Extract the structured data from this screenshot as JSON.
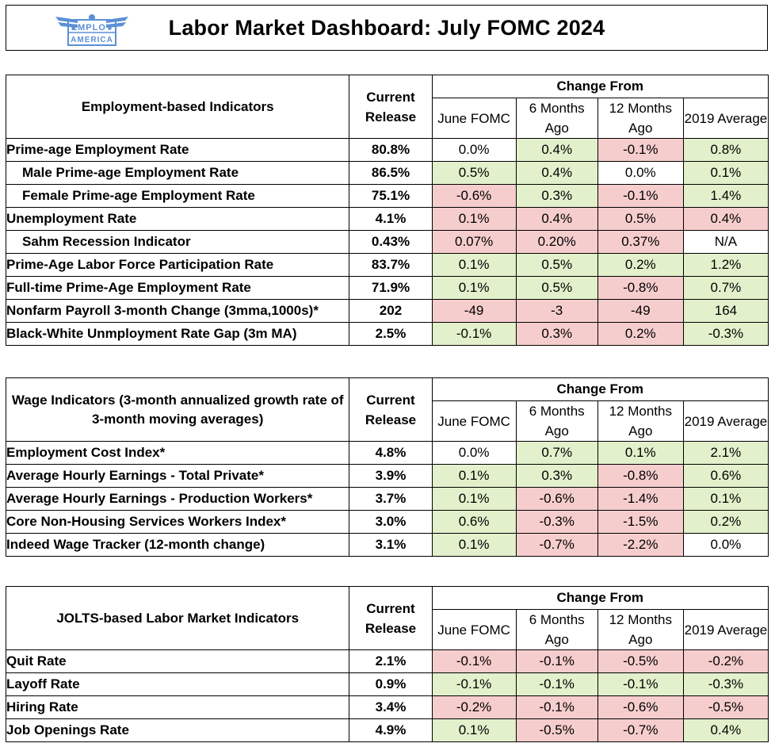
{
  "title": "Labor Market Dashboard: July FOMC 2024",
  "logo": {
    "line1": "EMPLOY",
    "line2": "AMERICA",
    "color": "#5b8fd6"
  },
  "colors": {
    "positive": "#e2f0cb",
    "negative": "#f6cdcd",
    "neutral": "#ffffff"
  },
  "columns": {
    "current": "Current Release",
    "change_from": "Change From",
    "june": "June FOMC",
    "six": "6 Months Ago",
    "twelve": "12 Months Ago",
    "avg2019": "2019 Average"
  },
  "sections": [
    {
      "label": "Employment-based Indicators",
      "rows": [
        {
          "label": "Prime-age Employment Rate",
          "indent": false,
          "current": "80.8%",
          "changes": [
            {
              "v": "0.0%",
              "c": "neu"
            },
            {
              "v": "0.4%",
              "c": "pos"
            },
            {
              "v": "-0.1%",
              "c": "neg"
            },
            {
              "v": "0.8%",
              "c": "pos"
            }
          ]
        },
        {
          "label": "Male Prime-age Employment Rate",
          "indent": true,
          "current": "86.5%",
          "changes": [
            {
              "v": "0.5%",
              "c": "pos"
            },
            {
              "v": "0.4%",
              "c": "pos"
            },
            {
              "v": "0.0%",
              "c": "neu"
            },
            {
              "v": "0.1%",
              "c": "pos"
            }
          ]
        },
        {
          "label": "Female Prime-age Employment Rate",
          "indent": true,
          "current": "75.1%",
          "changes": [
            {
              "v": "-0.6%",
              "c": "neg"
            },
            {
              "v": "0.3%",
              "c": "pos"
            },
            {
              "v": "-0.1%",
              "c": "neg"
            },
            {
              "v": "1.4%",
              "c": "pos"
            }
          ]
        },
        {
          "label": "Unemployment Rate",
          "indent": false,
          "current": "4.1%",
          "changes": [
            {
              "v": "0.1%",
              "c": "neg"
            },
            {
              "v": "0.4%",
              "c": "neg"
            },
            {
              "v": "0.5%",
              "c": "neg"
            },
            {
              "v": "0.4%",
              "c": "neg"
            }
          ]
        },
        {
          "label": "Sahm Recession Indicator",
          "indent": true,
          "current": "0.43%",
          "changes": [
            {
              "v": "0.07%",
              "c": "neg"
            },
            {
              "v": "0.20%",
              "c": "neg"
            },
            {
              "v": "0.37%",
              "c": "neg"
            },
            {
              "v": "N/A",
              "c": "neu"
            }
          ]
        },
        {
          "label": "Prime-Age Labor Force Participation Rate",
          "indent": false,
          "current": "83.7%",
          "changes": [
            {
              "v": "0.1%",
              "c": "pos"
            },
            {
              "v": "0.5%",
              "c": "pos"
            },
            {
              "v": "0.2%",
              "c": "pos"
            },
            {
              "v": "1.2%",
              "c": "pos"
            }
          ]
        },
        {
          "label": "Full-time Prime-Age Employment Rate",
          "indent": false,
          "current": "71.9%",
          "changes": [
            {
              "v": "0.1%",
              "c": "pos"
            },
            {
              "v": "0.5%",
              "c": "pos"
            },
            {
              "v": "-0.8%",
              "c": "neg"
            },
            {
              "v": "0.7%",
              "c": "pos"
            }
          ]
        },
        {
          "label": "Nonfarm Payroll 3-month Change (3mma,1000s)*",
          "indent": false,
          "current": "202",
          "changes": [
            {
              "v": "-49",
              "c": "neg"
            },
            {
              "v": "-3",
              "c": "neg"
            },
            {
              "v": "-49",
              "c": "neg"
            },
            {
              "v": "164",
              "c": "pos"
            }
          ]
        },
        {
          "label": "Black-White Unmployment Rate Gap (3m MA)",
          "indent": false,
          "current": "2.5%",
          "changes": [
            {
              "v": "-0.1%",
              "c": "pos"
            },
            {
              "v": "0.3%",
              "c": "neg"
            },
            {
              "v": "0.2%",
              "c": "neg"
            },
            {
              "v": "-0.3%",
              "c": "pos"
            }
          ]
        }
      ]
    },
    {
      "label": "Wage Indicators (3-month annualized growth rate of 3-month moving averages)",
      "rows": [
        {
          "label": "Employment Cost Index*",
          "indent": false,
          "current": "4.8%",
          "changes": [
            {
              "v": "0.0%",
              "c": "neu"
            },
            {
              "v": "0.7%",
              "c": "pos"
            },
            {
              "v": "0.1%",
              "c": "pos"
            },
            {
              "v": "2.1%",
              "c": "pos"
            }
          ]
        },
        {
          "label": "Average Hourly Earnings - Total Private*",
          "indent": false,
          "current": "3.9%",
          "changes": [
            {
              "v": "0.1%",
              "c": "pos"
            },
            {
              "v": "0.3%",
              "c": "pos"
            },
            {
              "v": "-0.8%",
              "c": "neg"
            },
            {
              "v": "0.6%",
              "c": "pos"
            }
          ]
        },
        {
          "label": "Average Hourly Earnings - Production Workers*",
          "indent": false,
          "current": "3.7%",
          "changes": [
            {
              "v": "0.1%",
              "c": "pos"
            },
            {
              "v": "-0.6%",
              "c": "neg"
            },
            {
              "v": "-1.4%",
              "c": "neg"
            },
            {
              "v": "0.1%",
              "c": "pos"
            }
          ]
        },
        {
          "label": "Core Non-Housing Services Workers Index*",
          "indent": false,
          "current": "3.0%",
          "changes": [
            {
              "v": "0.6%",
              "c": "pos"
            },
            {
              "v": "-0.3%",
              "c": "neg"
            },
            {
              "v": "-1.5%",
              "c": "neg"
            },
            {
              "v": "0.2%",
              "c": "pos"
            }
          ]
        },
        {
          "label": "Indeed Wage Tracker (12-month change)",
          "indent": false,
          "current": "3.1%",
          "changes": [
            {
              "v": "0.1%",
              "c": "pos"
            },
            {
              "v": "-0.7%",
              "c": "neg"
            },
            {
              "v": "-2.2%",
              "c": "neg"
            },
            {
              "v": "0.0%",
              "c": "neu"
            }
          ]
        }
      ]
    },
    {
      "label": "JOLTS-based Labor Market Indicators",
      "rows": [
        {
          "label": "Quit Rate",
          "indent": false,
          "current": "2.1%",
          "changes": [
            {
              "v": "-0.1%",
              "c": "neg"
            },
            {
              "v": "-0.1%",
              "c": "neg"
            },
            {
              "v": "-0.5%",
              "c": "neg"
            },
            {
              "v": "-0.2%",
              "c": "neg"
            }
          ]
        },
        {
          "label": "Layoff Rate",
          "indent": false,
          "current": "0.9%",
          "changes": [
            {
              "v": "-0.1%",
              "c": "pos"
            },
            {
              "v": "-0.1%",
              "c": "pos"
            },
            {
              "v": "-0.1%",
              "c": "pos"
            },
            {
              "v": "-0.3%",
              "c": "pos"
            }
          ]
        },
        {
          "label": "Hiring Rate",
          "indent": false,
          "current": "3.4%",
          "changes": [
            {
              "v": "-0.2%",
              "c": "neg"
            },
            {
              "v": "-0.1%",
              "c": "neg"
            },
            {
              "v": "-0.6%",
              "c": "neg"
            },
            {
              "v": "-0.5%",
              "c": "neg"
            }
          ]
        },
        {
          "label": "Job Openings Rate",
          "indent": false,
          "current": "4.9%",
          "changes": [
            {
              "v": "0.1%",
              "c": "pos"
            },
            {
              "v": "-0.5%",
              "c": "neg"
            },
            {
              "v": "-0.7%",
              "c": "neg"
            },
            {
              "v": "0.4%",
              "c": "pos"
            }
          ]
        }
      ]
    }
  ]
}
